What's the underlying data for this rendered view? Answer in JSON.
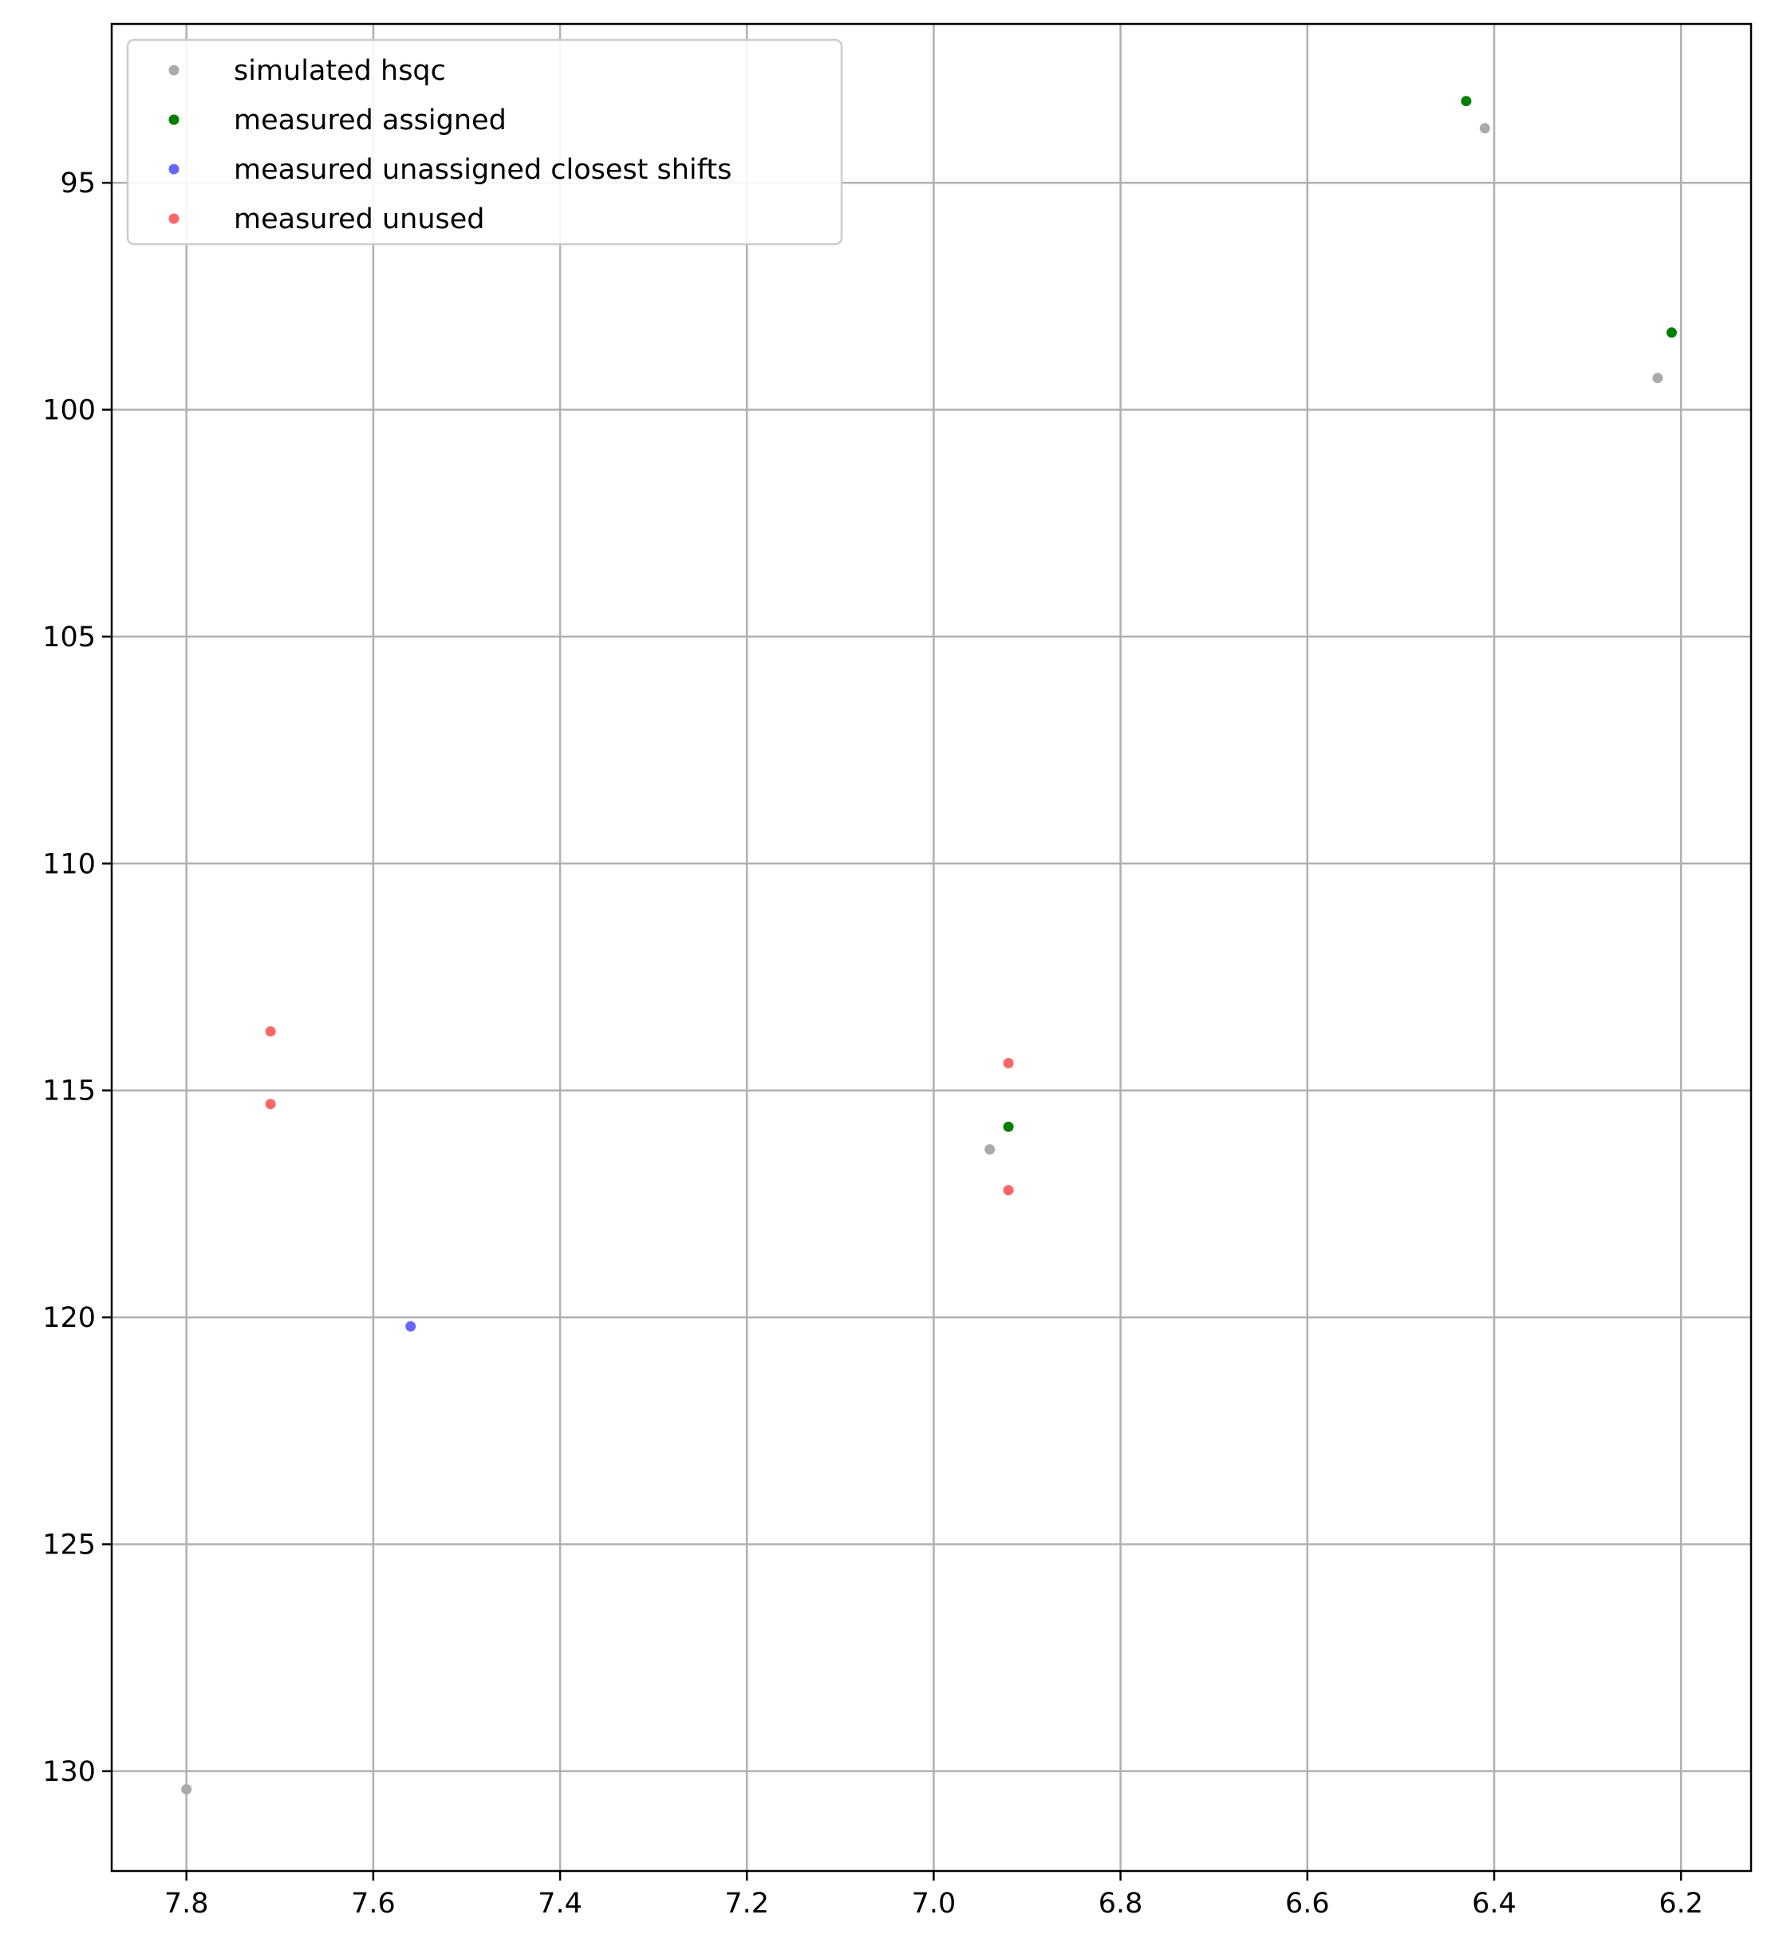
{
  "chart_data": {
    "type": "scatter",
    "title": "",
    "xlabel": "",
    "ylabel": "",
    "xlim": [
      7.88,
      6.125
    ],
    "ylim": [
      132.2,
      91.5
    ],
    "x_inverted": true,
    "y_inverted": true,
    "grid": true,
    "legend_position": "top-left",
    "x_ticks": [
      7.8,
      7.6,
      7.4,
      7.2,
      7.0,
      6.8,
      6.6,
      6.4,
      6.2
    ],
    "x_tick_labels": [
      "7.8",
      "7.6",
      "7.4",
      "7.2",
      "7.0",
      "6.8",
      "6.6",
      "6.4",
      "6.2"
    ],
    "y_ticks": [
      95,
      100,
      105,
      110,
      115,
      120,
      125,
      130
    ],
    "y_tick_labels": [
      "95",
      "100",
      "105",
      "110",
      "115",
      "120",
      "125",
      "130"
    ],
    "series": [
      {
        "name": "simulated hsqc",
        "color": "#aaaaaa",
        "points": [
          [
            6.41,
            93.8
          ],
          [
            6.225,
            99.3
          ],
          [
            6.94,
            116.3
          ],
          [
            7.8,
            130.4
          ]
        ]
      },
      {
        "name": "measured assigned",
        "color": "#008000",
        "points": [
          [
            6.43,
            93.2
          ],
          [
            6.21,
            98.3
          ],
          [
            6.92,
            115.8
          ]
        ]
      },
      {
        "name": "measured unassigned closest shifts",
        "color": "#6666ff",
        "points": [
          [
            7.56,
            120.2
          ]
        ]
      },
      {
        "name": "measured unused",
        "color": "#ff6666",
        "points": [
          [
            7.71,
            113.7
          ],
          [
            7.71,
            115.3
          ],
          [
            6.92,
            114.4
          ],
          [
            6.92,
            117.2
          ]
        ]
      }
    ]
  }
}
